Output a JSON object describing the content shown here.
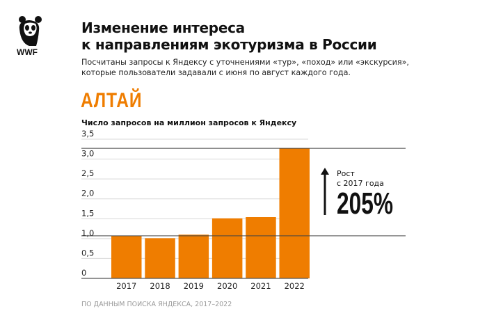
{
  "logo": {
    "text": "WWF"
  },
  "title_line1": "Изменение интереса",
  "title_line2": "к направлениям экотуризма в России",
  "subtitle_line1": "Посчитаны запросы к Яндексу с уточнениями «тур», «поход» или «экскурсия»,",
  "subtitle_line2": "которые пользователи задавали с июня по август каждого года.",
  "region": "АЛТАЙ",
  "source": "ПО ДАННЫМ ПОИСКА ЯНДЕКСА, 2017–2022",
  "annotation": {
    "line1": "Рост",
    "line2": "с 2017 года",
    "value": "205%"
  },
  "colors": {
    "bar": "#ef7d00"
  },
  "chart_data": {
    "type": "bar",
    "title": "АЛТАЙ",
    "ylabel": "Число запросов на миллион запросов к Яндексу",
    "xlabel": "",
    "categories": [
      "2017",
      "2018",
      "2019",
      "2020",
      "2021",
      "2022"
    ],
    "values": [
      1.07,
      1.01,
      1.1,
      1.51,
      1.54,
      3.27
    ],
    "ylim": [
      0,
      3.5
    ],
    "yticks": [
      "0",
      "0,5",
      "1,0",
      "1,5",
      "2,0",
      "2,5",
      "3,0",
      "3,5"
    ],
    "grid": true,
    "reference_lines": [
      1.07,
      3.27
    ]
  }
}
